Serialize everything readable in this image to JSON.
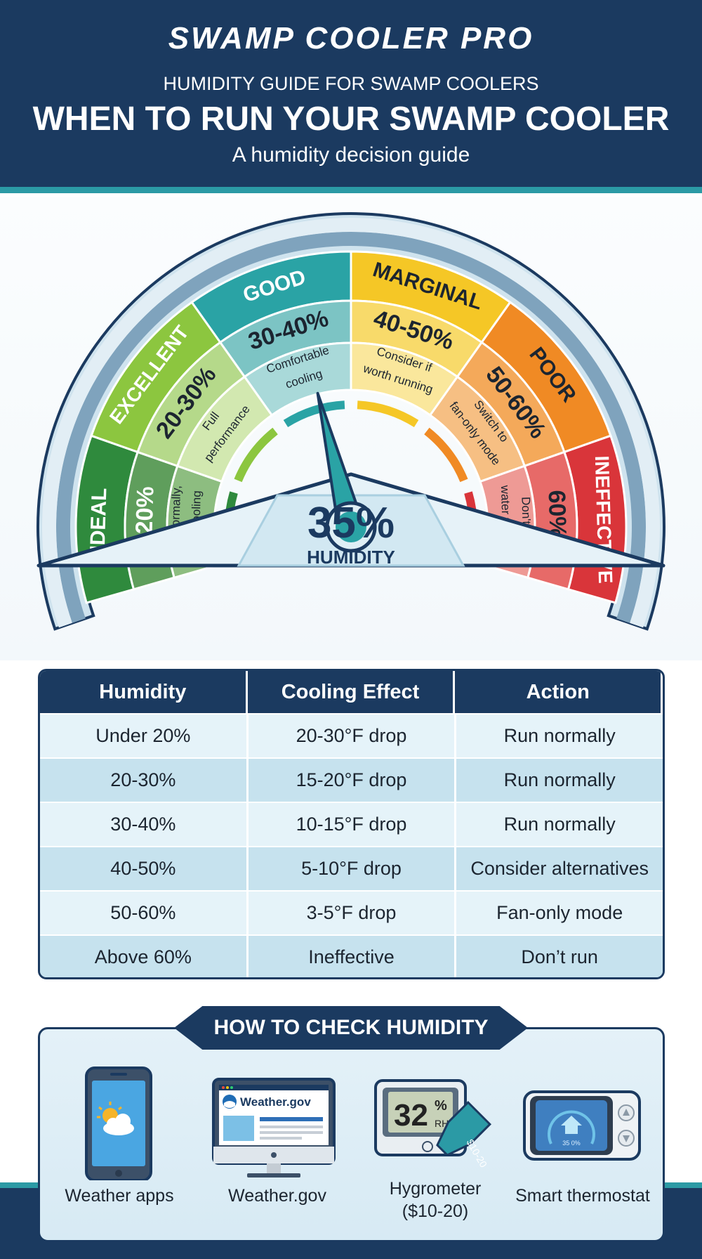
{
  "header": {
    "brand": "SWAMP COOLER PRO",
    "kicker": "HUMIDITY GUIDE FOR SWAMP COOLERS",
    "title": "WHEN TO RUN YOUR SWAMP COOLER",
    "subtitle": "A humidity decision guide"
  },
  "gauge": {
    "current_value": "35%",
    "current_label": "HUMIDITY",
    "needle_value": 35,
    "segments": [
      {
        "name": "IDEAL",
        "range": "0-20%",
        "note_line1": "Run normally,",
        "note_line2": "max cooling",
        "outer": "#2f8a3d",
        "mid": "#5f9e5c",
        "inner": "#8dbd80"
      },
      {
        "name": "EXCELLENT",
        "range": "20-30%",
        "note_line1": "Full",
        "note_line2": "performance",
        "outer": "#8cc63f",
        "mid": "#b5d98a",
        "inner": "#d2e8b0"
      },
      {
        "name": "GOOD",
        "range": "30-40%",
        "note_line1": "Comfortable",
        "note_line2": "cooling",
        "outer": "#2aa3a5",
        "mid": "#7cc4c4",
        "inner": "#a9d9d9"
      },
      {
        "name": "MARGINAL",
        "range": "40-50%",
        "note_line1": "Consider if",
        "note_line2": "worth running",
        "outer": "#f5c726",
        "mid": "#f8da6a",
        "inner": "#fae79c"
      },
      {
        "name": "POOR",
        "range": "50-60%",
        "note_line1": "Switch to",
        "note_line2": "fan-only mode",
        "outer": "#f08a24",
        "mid": "#f4a95a",
        "inner": "#f6bf83"
      },
      {
        "name": "INEFFECTIVE",
        "range": "60%+",
        "note_line1": "Don't use",
        "note_line2": "water function",
        "outer": "#d9353a",
        "mid": "#e76a68",
        "inner": "#ee9a95"
      }
    ]
  },
  "table": {
    "headers": [
      "Humidity",
      "Cooling Effect",
      "Action"
    ],
    "rows": [
      [
        "Under 20%",
        "20-30°F drop",
        "Run normally"
      ],
      [
        "20-30%",
        "15-20°F drop",
        "Run normally"
      ],
      [
        "30-40%",
        "10-15°F drop",
        "Run normally"
      ],
      [
        "40-50%",
        "5-10°F drop",
        "Consider alternatives"
      ],
      [
        "50-60%",
        "3-5°F drop",
        "Fan-only mode"
      ],
      [
        "Above 60%",
        "Ineffective",
        "Don’t run"
      ]
    ]
  },
  "check": {
    "title": "HOW TO CHECK HUMIDITY",
    "methods": [
      {
        "label": "Weather apps",
        "icon": "smartphone-weather-icon"
      },
      {
        "label": "Weather.gov",
        "icon": "monitor-weather-gov-icon",
        "screen_text": "Weather.gov"
      },
      {
        "label_line1": "Hygrometer",
        "label_line2": "($10-20)",
        "icon": "hygrometer-icon",
        "display_value": "32",
        "display_unit": "%",
        "display_sub": "RH",
        "price_tag": "$10-20"
      },
      {
        "label": "Smart thermostat",
        "icon": "smart-thermostat-icon",
        "display_value": "35 0%"
      }
    ]
  },
  "colors": {
    "navy": "#1b3a60",
    "teal": "#2b9aa5"
  }
}
